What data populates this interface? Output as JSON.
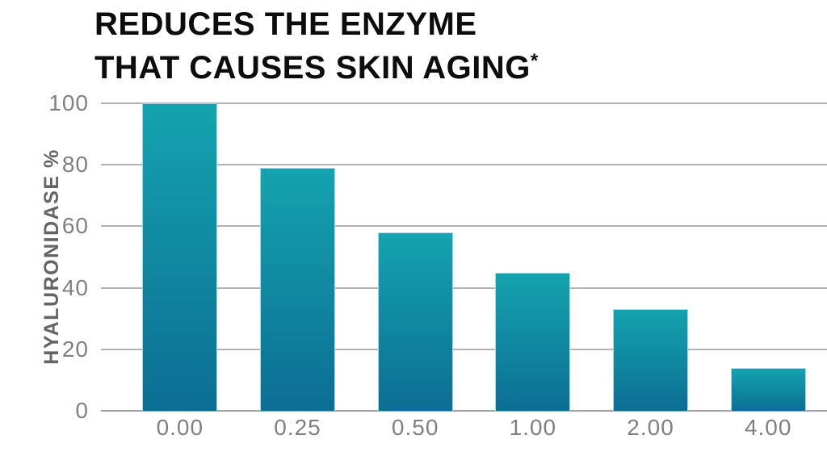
{
  "title": {
    "line1": "REDUCES THE ENZYME",
    "line2": "THAT CAUSES SKIN AGING",
    "footnote_marker": "*"
  },
  "chart_data": {
    "type": "bar",
    "title": "REDUCES THE ENZYME THAT CAUSES SKIN AGING*",
    "categories": [
      "0.00",
      "0.25",
      "0.50",
      "1.00",
      "2.00",
      "4.00"
    ],
    "values": [
      100,
      79,
      58,
      45,
      33,
      14
    ],
    "xlabel": "",
    "ylabel": "HYALURONIDASE %",
    "yticks": [
      0,
      20,
      40,
      60,
      80,
      100
    ],
    "ylim": [
      0,
      100
    ],
    "grid": "horizontal-only",
    "legend_position": "none",
    "bar_gradient_top": "#14a3ae",
    "bar_gradient_bottom": "#0c6e94"
  },
  "colors": {
    "background": "#ffffff",
    "title_text": "#0d0d0d",
    "axis_text": "#7e8083",
    "y_axis_title_text": "#636568",
    "gridline": "#b1b3b5",
    "baseline": "#9fa1a4",
    "bar_edge_highlight": "#a9dae2"
  }
}
